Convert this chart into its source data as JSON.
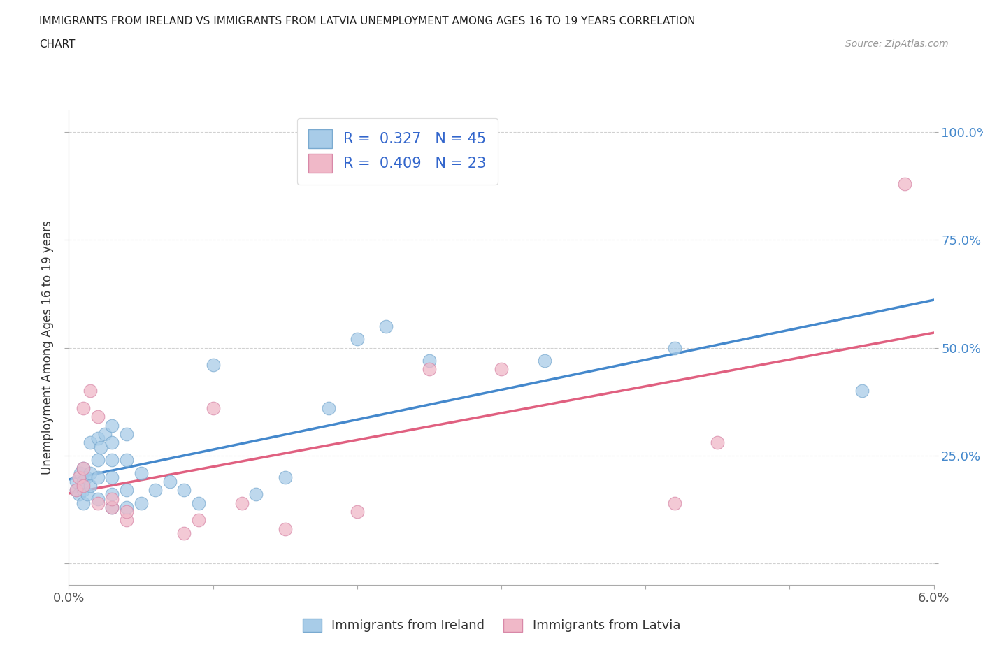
{
  "title_line1": "IMMIGRANTS FROM IRELAND VS IMMIGRANTS FROM LATVIA UNEMPLOYMENT AMONG AGES 16 TO 19 YEARS CORRELATION",
  "title_line2": "CHART",
  "source": "Source: ZipAtlas.com",
  "ylabel": "Unemployment Among Ages 16 to 19 years",
  "xlim": [
    0.0,
    0.06
  ],
  "ylim": [
    -0.05,
    1.05
  ],
  "ytick_vals": [
    0.0,
    0.25,
    0.5,
    0.75,
    1.0
  ],
  "ytick_labels_right": [
    "",
    "25.0%",
    "50.0%",
    "75.0%",
    "100.0%"
  ],
  "xtick_vals": [
    0.0,
    0.01,
    0.02,
    0.03,
    0.04,
    0.05,
    0.06
  ],
  "xtick_labels": [
    "0.0%",
    "",
    "",
    "",
    "",
    "",
    "6.0%"
  ],
  "ireland_color": "#a8cce8",
  "ireland_edge": "#7aaad0",
  "latvia_color": "#f0b8c8",
  "latvia_edge": "#d888a8",
  "trendline_ireland": "#4488cc",
  "trendline_latvia": "#e06080",
  "grid_color": "#cccccc",
  "bg_color": "#ffffff",
  "ireland_R": 0.327,
  "ireland_N": 45,
  "latvia_R": 0.409,
  "latvia_N": 23,
  "legend_label_ireland": "Immigrants from Ireland",
  "legend_label_latvia": "Immigrants from Latvia",
  "ireland_x": [
    0.0005,
    0.0005,
    0.0007,
    0.0008,
    0.001,
    0.001,
    0.001,
    0.001,
    0.0012,
    0.0013,
    0.0015,
    0.0015,
    0.0015,
    0.002,
    0.002,
    0.002,
    0.002,
    0.0022,
    0.0025,
    0.003,
    0.003,
    0.003,
    0.003,
    0.003,
    0.003,
    0.004,
    0.004,
    0.004,
    0.004,
    0.005,
    0.005,
    0.006,
    0.007,
    0.008,
    0.009,
    0.01,
    0.013,
    0.015,
    0.018,
    0.02,
    0.022,
    0.025,
    0.033,
    0.042,
    0.055
  ],
  "ireland_y": [
    0.17,
    0.19,
    0.16,
    0.21,
    0.14,
    0.17,
    0.19,
    0.22,
    0.2,
    0.16,
    0.18,
    0.21,
    0.28,
    0.15,
    0.2,
    0.24,
    0.29,
    0.27,
    0.3,
    0.13,
    0.16,
    0.2,
    0.24,
    0.28,
    0.32,
    0.13,
    0.17,
    0.24,
    0.3,
    0.14,
    0.21,
    0.17,
    0.19,
    0.17,
    0.14,
    0.46,
    0.16,
    0.2,
    0.36,
    0.52,
    0.55,
    0.47,
    0.47,
    0.5,
    0.4
  ],
  "latvia_x": [
    0.0005,
    0.0007,
    0.001,
    0.001,
    0.001,
    0.0015,
    0.002,
    0.002,
    0.003,
    0.003,
    0.004,
    0.004,
    0.008,
    0.009,
    0.01,
    0.012,
    0.015,
    0.02,
    0.025,
    0.03,
    0.042,
    0.045,
    0.058
  ],
  "latvia_y": [
    0.17,
    0.2,
    0.18,
    0.22,
    0.36,
    0.4,
    0.14,
    0.34,
    0.13,
    0.15,
    0.1,
    0.12,
    0.07,
    0.1,
    0.36,
    0.14,
    0.08,
    0.12,
    0.45,
    0.45,
    0.14,
    0.28,
    0.88
  ]
}
